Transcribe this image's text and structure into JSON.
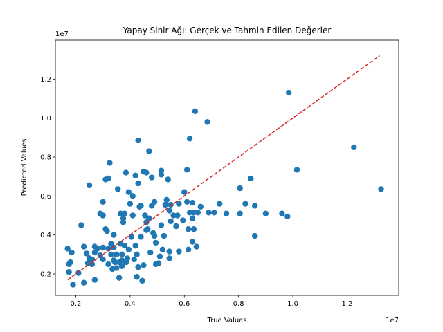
{
  "chart_data": {
    "type": "scatter",
    "title": "Yapay Sinir Ağı: Gerçek ve Tahmin Edilen Değerler",
    "xlabel": "True Values",
    "ylabel": "Predicted Values",
    "x_offset_label": "1e7",
    "y_offset_label": "1e7",
    "xlim": [
      1.25,
      13.9
    ],
    "ylim": [
      0.9,
      14.0
    ],
    "xticks": [
      2,
      4,
      6,
      8,
      10,
      12
    ],
    "xtick_labels": [
      "0.2",
      "0.4",
      "0.6",
      "0.8",
      "1.0",
      "1.2"
    ],
    "yticks": [
      2,
      4,
      6,
      8,
      10,
      12
    ],
    "ytick_labels": [
      "0.2",
      "0.4",
      "0.6",
      "0.8",
      "1.0",
      "1.2"
    ],
    "grid": false,
    "point_color": "#1f77b4",
    "reference_line": {
      "x": [
        1.7,
        13.2
      ],
      "y": [
        1.7,
        13.2
      ],
      "color": "#d62728",
      "style": "dashed"
    },
    "points": [
      [
        1.7,
        3.3
      ],
      [
        1.75,
        2.5
      ],
      [
        1.8,
        2.6
      ],
      [
        1.85,
        3.1
      ],
      [
        1.75,
        2.1
      ],
      [
        1.9,
        1.45
      ],
      [
        2.1,
        2.05
      ],
      [
        2.2,
        4.5
      ],
      [
        2.3,
        1.55
      ],
      [
        2.3,
        3.4
      ],
      [
        2.4,
        3.05
      ],
      [
        2.45,
        2.55
      ],
      [
        2.5,
        6.55
      ],
      [
        2.5,
        2.8
      ],
      [
        2.6,
        2.5
      ],
      [
        2.6,
        2.75
      ],
      [
        2.7,
        3.1
      ],
      [
        2.7,
        3.4
      ],
      [
        2.7,
        1.7
      ],
      [
        2.8,
        3.3
      ],
      [
        2.9,
        5.1
      ],
      [
        2.9,
        2.95
      ],
      [
        3.0,
        5.7
      ],
      [
        3.0,
        5.0
      ],
      [
        3.0,
        3.35
      ],
      [
        3.0,
        2.75
      ],
      [
        3.1,
        4.3
      ],
      [
        3.1,
        6.85
      ],
      [
        3.15,
        4.2
      ],
      [
        3.2,
        6.9
      ],
      [
        3.2,
        3.3
      ],
      [
        3.2,
        2.5
      ],
      [
        3.25,
        7.7
      ],
      [
        3.3,
        3.55
      ],
      [
        3.3,
        3.0
      ],
      [
        3.35,
        2.25
      ],
      [
        3.4,
        4.0
      ],
      [
        3.4,
        3.35
      ],
      [
        3.4,
        2.7
      ],
      [
        3.45,
        2.6
      ],
      [
        3.5,
        3.0
      ],
      [
        3.5,
        2.3
      ],
      [
        3.55,
        6.35
      ],
      [
        3.6,
        2.6
      ],
      [
        3.6,
        1.8
      ],
      [
        3.65,
        5.1
      ],
      [
        3.65,
        3.55
      ],
      [
        3.7,
        3.0
      ],
      [
        3.7,
        2.7
      ],
      [
        3.7,
        2.4
      ],
      [
        3.75,
        4.85
      ],
      [
        3.75,
        4.65
      ],
      [
        3.8,
        5.1
      ],
      [
        3.8,
        3.45
      ],
      [
        3.85,
        7.2
      ],
      [
        3.85,
        2.6
      ],
      [
        3.9,
        2.8
      ],
      [
        3.95,
        6.2
      ],
      [
        3.95,
        3.25
      ],
      [
        4.0,
        5.6
      ],
      [
        4.05,
        3.9
      ],
      [
        4.1,
        6.0
      ],
      [
        4.1,
        5.0
      ],
      [
        4.15,
        2.75
      ],
      [
        4.2,
        7.05
      ],
      [
        4.2,
        3.45
      ],
      [
        4.25,
        3.0
      ],
      [
        4.25,
        1.85
      ],
      [
        4.3,
        8.85
      ],
      [
        4.3,
        6.65
      ],
      [
        4.3,
        2.35
      ],
      [
        4.35,
        5.45
      ],
      [
        4.4,
        5.5
      ],
      [
        4.4,
        3.9
      ],
      [
        4.45,
        1.65
      ],
      [
        4.5,
        7.25
      ],
      [
        4.5,
        2.45
      ],
      [
        4.55,
        5.0
      ],
      [
        4.6,
        7.2
      ],
      [
        4.6,
        4.65
      ],
      [
        4.6,
        4.25
      ],
      [
        4.65,
        4.3
      ],
      [
        4.7,
        8.3
      ],
      [
        4.7,
        4.85
      ],
      [
        4.75,
        3.1
      ],
      [
        4.8,
        6.95
      ],
      [
        4.8,
        5.5
      ],
      [
        4.85,
        4.1
      ],
      [
        4.9,
        5.7
      ],
      [
        4.9,
        3.95
      ],
      [
        4.95,
        3.6
      ],
      [
        4.95,
        2.5
      ],
      [
        5.05,
        2.55
      ],
      [
        5.1,
        2.9
      ],
      [
        5.15,
        7.3
      ],
      [
        5.15,
        7.1
      ],
      [
        5.15,
        4.5
      ],
      [
        5.2,
        3.25
      ],
      [
        5.25,
        3.95
      ],
      [
        5.3,
        5.55
      ],
      [
        5.35,
        5.8
      ],
      [
        5.4,
        6.85
      ],
      [
        5.45,
        5.25
      ],
      [
        5.45,
        3.15
      ],
      [
        5.45,
        2.8
      ],
      [
        5.5,
        5.55
      ],
      [
        5.5,
        4.7
      ],
      [
        5.6,
        5.0
      ],
      [
        5.7,
        4.45
      ],
      [
        5.75,
        5.0
      ],
      [
        5.8,
        5.6
      ],
      [
        5.8,
        3.15
      ],
      [
        5.95,
        4.75
      ],
      [
        6.0,
        6.2
      ],
      [
        6.1,
        5.7
      ],
      [
        6.1,
        7.35
      ],
      [
        6.15,
        4.3
      ],
      [
        6.15,
        3.25
      ],
      [
        6.2,
        8.95
      ],
      [
        6.2,
        5.15
      ],
      [
        6.3,
        5.65
      ],
      [
        6.3,
        4.85
      ],
      [
        6.3,
        3.65
      ],
      [
        6.35,
        5.15
      ],
      [
        6.35,
        4.3
      ],
      [
        6.4,
        10.35
      ],
      [
        6.45,
        3.4
      ],
      [
        6.5,
        5.15
      ],
      [
        6.6,
        5.45
      ],
      [
        6.85,
        9.8
      ],
      [
        6.9,
        5.15
      ],
      [
        7.1,
        5.15
      ],
      [
        7.3,
        5.6
      ],
      [
        7.55,
        5.1
      ],
      [
        8.05,
        6.4
      ],
      [
        8.05,
        5.1
      ],
      [
        8.25,
        5.6
      ],
      [
        8.45,
        6.9
      ],
      [
        8.6,
        5.5
      ],
      [
        8.6,
        3.95
      ],
      [
        9.0,
        5.1
      ],
      [
        9.6,
        5.1
      ],
      [
        9.8,
        4.95
      ],
      [
        9.85,
        11.3
      ],
      [
        10.15,
        7.35
      ],
      [
        12.25,
        8.5
      ],
      [
        13.25,
        6.35
      ]
    ]
  }
}
